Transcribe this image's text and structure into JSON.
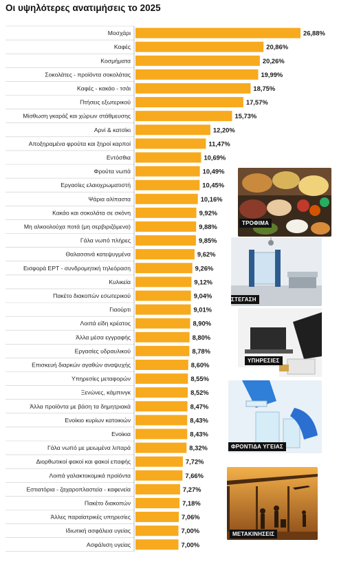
{
  "title": "Οι υψηλότερες ανατιμήσεις το 2025",
  "photo_labels": [
    "ΤΡΟΦΙΜΑ",
    "ΣΤΕΓΑΣΗ",
    "ΥΠΗΡΕΣΙΕΣ",
    "ΦΡΟΝΤΙΔΑ ΥΓΕΙΑΣ",
    "ΜΕΤΑΚΙΝΗΣΕΙΣ"
  ],
  "colors": {
    "bar": "#f7aa1d",
    "label_bg": "#111111"
  },
  "chart_data": {
    "type": "bar",
    "orientation": "horizontal",
    "title": "Οι υψηλότερες ανατιμήσεις το 2025",
    "categories": [
      "Μοσχάρι",
      "Καφές",
      "Κοσμήματα",
      "Σοκολάτες - προϊόντα σοκολάτας",
      "Καφές - κακάο - τσάι",
      "Πτήσεις εξωτερικού",
      "Μίσθωση γκαράζ και χώρων στάθμευσης",
      "Αρνί & κατσίκι",
      "Αποξηραμένα φρούτα και ξηροί καρποί",
      "Εντόσθια",
      "Φρούτα νωπά",
      "Εργασίες ελαιοχρωματιστή",
      "Ψάρια αλίπαστα",
      "Κακάο και σοκολάτα σε σκόνη",
      "Μη αλκοολούχα ποτά (μη σερβιριζόμενα)",
      "Γάλα νωπό πλήρες",
      "Θαλασσινά κατεψυγμένα",
      "Εισφορά ΕΡΤ - συνδρομητική τηλεόραση",
      "Κυλικεία",
      "Πακέτο διακοπών εσωτερικού",
      "Γιαούρτι",
      "Λοιπά είδη κρέατος",
      "Άλλα μέσα εγγραφής",
      "Εργασίες υδραυλικού",
      "Επισκευή διαρκών αγαθών αναψυχής",
      "Υπηρεσίες μεταφορών",
      "Ξενώνες, κάμπινγκ",
      "Άλλα προϊόντα με βάση τα δημητριακά",
      "Ενοίκιο κυρίων κατοικιών",
      "Ενοίκια",
      "Γάλα νωπό με μειωμένα λιπαρά",
      "Διορθωτικοί φακοί και φακοί επαφής",
      "Λοιπά γαλακτοκομικά προϊόντα",
      "Εστιατόρια - ζαχαροπλαστεία - καφενεία",
      "Πακέτο διακοπών",
      "Άλλες παραϊατρικές υπηρεσίες",
      "Ιδιωτική ασφάλεια υγείας",
      "Ασφάλιση υγείας"
    ],
    "values": [
      26.88,
      20.86,
      20.26,
      19.99,
      18.75,
      17.57,
      15.73,
      12.2,
      11.47,
      10.69,
      10.49,
      10.45,
      10.16,
      9.92,
      9.88,
      9.85,
      9.62,
      9.26,
      9.12,
      9.04,
      9.01,
      8.9,
      8.8,
      8.78,
      8.6,
      8.55,
      8.52,
      8.47,
      8.43,
      8.43,
      8.32,
      7.72,
      7.66,
      7.27,
      7.18,
      7.06,
      7.0,
      7.0
    ],
    "value_labels": [
      "26,88%",
      "20,86%",
      "20,26%",
      "19,99%",
      "18,75%",
      "17,57%",
      "15,73%",
      "12,20%",
      "11,47%",
      "10,69%",
      "10,49%",
      "10,45%",
      "10,16%",
      "9,92%",
      "9,88%",
      "9,85%",
      "9,62%",
      "9,26%",
      "9,12%",
      "9,04%",
      "9,01%",
      "8,90%",
      "8,80%",
      "8,78%",
      "8,60%",
      "8,55%",
      "8,52%",
      "8,47%",
      "8,43%",
      "8,43%",
      "8,32%",
      "7,72%",
      "7,66%",
      "7,27%",
      "7,18%",
      "7,06%",
      "7,00%",
      "7,00%"
    ],
    "unit": "%",
    "grid": false,
    "legend": "none"
  }
}
